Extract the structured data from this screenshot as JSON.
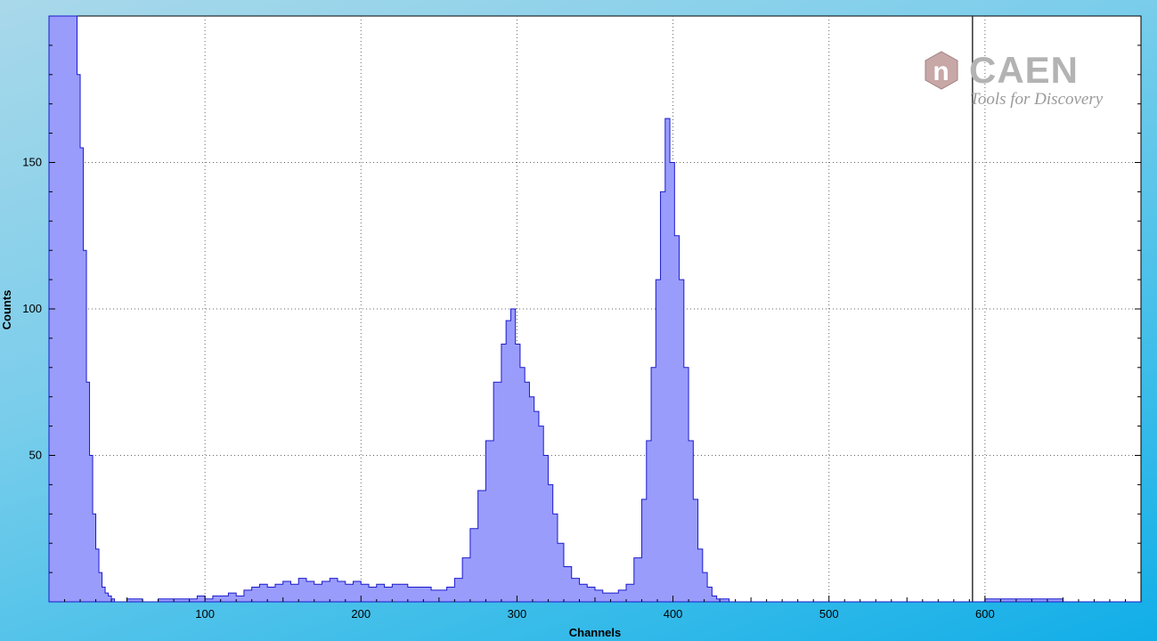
{
  "chart_data": {
    "type": "bar",
    "xlabel": "Channels",
    "ylabel": "Counts",
    "xlim": [
      0,
      700
    ],
    "ylim": [
      0,
      200
    ],
    "x_ticks": [
      100,
      200,
      300,
      400,
      500,
      600
    ],
    "y_ticks": [
      50,
      100,
      150
    ],
    "grid": true,
    "marker_x": 592,
    "series": [
      {
        "points": [
          [
            0,
            200
          ],
          [
            5,
            200
          ],
          [
            10,
            200
          ],
          [
            15,
            200
          ],
          [
            18,
            180
          ],
          [
            20,
            155
          ],
          [
            22,
            120
          ],
          [
            24,
            75
          ],
          [
            26,
            50
          ],
          [
            28,
            30
          ],
          [
            30,
            18
          ],
          [
            32,
            10
          ],
          [
            34,
            5
          ],
          [
            36,
            3
          ],
          [
            38,
            2
          ],
          [
            40,
            1
          ],
          [
            42,
            0
          ],
          [
            50,
            1
          ],
          [
            60,
            0
          ],
          [
            70,
            1
          ],
          [
            80,
            1
          ],
          [
            90,
            1
          ],
          [
            95,
            2
          ],
          [
            100,
            1
          ],
          [
            105,
            2
          ],
          [
            110,
            2
          ],
          [
            115,
            3
          ],
          [
            120,
            2
          ],
          [
            125,
            4
          ],
          [
            130,
            5
          ],
          [
            135,
            6
          ],
          [
            140,
            5
          ],
          [
            145,
            6
          ],
          [
            150,
            7
          ],
          [
            155,
            6
          ],
          [
            160,
            8
          ],
          [
            165,
            7
          ],
          [
            170,
            6
          ],
          [
            175,
            7
          ],
          [
            180,
            8
          ],
          [
            185,
            7
          ],
          [
            190,
            6
          ],
          [
            195,
            7
          ],
          [
            200,
            6
          ],
          [
            205,
            5
          ],
          [
            210,
            6
          ],
          [
            215,
            5
          ],
          [
            220,
            6
          ],
          [
            225,
            6
          ],
          [
            230,
            5
          ],
          [
            235,
            5
          ],
          [
            240,
            5
          ],
          [
            245,
            4
          ],
          [
            250,
            4
          ],
          [
            255,
            5
          ],
          [
            260,
            8
          ],
          [
            265,
            15
          ],
          [
            270,
            25
          ],
          [
            275,
            38
          ],
          [
            280,
            55
          ],
          [
            285,
            75
          ],
          [
            290,
            88
          ],
          [
            293,
            96
          ],
          [
            296,
            100
          ],
          [
            299,
            88
          ],
          [
            302,
            80
          ],
          [
            305,
            75
          ],
          [
            308,
            70
          ],
          [
            311,
            65
          ],
          [
            314,
            60
          ],
          [
            317,
            50
          ],
          [
            320,
            40
          ],
          [
            323,
            30
          ],
          [
            326,
            20
          ],
          [
            330,
            12
          ],
          [
            335,
            8
          ],
          [
            340,
            6
          ],
          [
            345,
            5
          ],
          [
            350,
            4
          ],
          [
            355,
            3
          ],
          [
            360,
            3
          ],
          [
            365,
            4
          ],
          [
            370,
            6
          ],
          [
            375,
            15
          ],
          [
            380,
            35
          ],
          [
            383,
            55
          ],
          [
            386,
            80
          ],
          [
            389,
            110
          ],
          [
            392,
            140
          ],
          [
            395,
            165
          ],
          [
            398,
            150
          ],
          [
            401,
            125
          ],
          [
            404,
            110
          ],
          [
            407,
            80
          ],
          [
            410,
            55
          ],
          [
            413,
            35
          ],
          [
            416,
            18
          ],
          [
            419,
            10
          ],
          [
            422,
            5
          ],
          [
            425,
            2
          ],
          [
            428,
            1
          ],
          [
            432,
            1
          ],
          [
            436,
            0
          ],
          [
            600,
            1
          ],
          [
            650,
            0
          ],
          [
            700,
            0
          ]
        ]
      }
    ]
  },
  "logo": {
    "word": "CAEN",
    "badge": "n",
    "tagline": "Tools for Discovery"
  },
  "colors": {
    "fill": "#9a9cfc",
    "stroke": "#1a1acc",
    "plot_bg": "#ffffff",
    "grid": "#666666",
    "marker": "#333333"
  }
}
